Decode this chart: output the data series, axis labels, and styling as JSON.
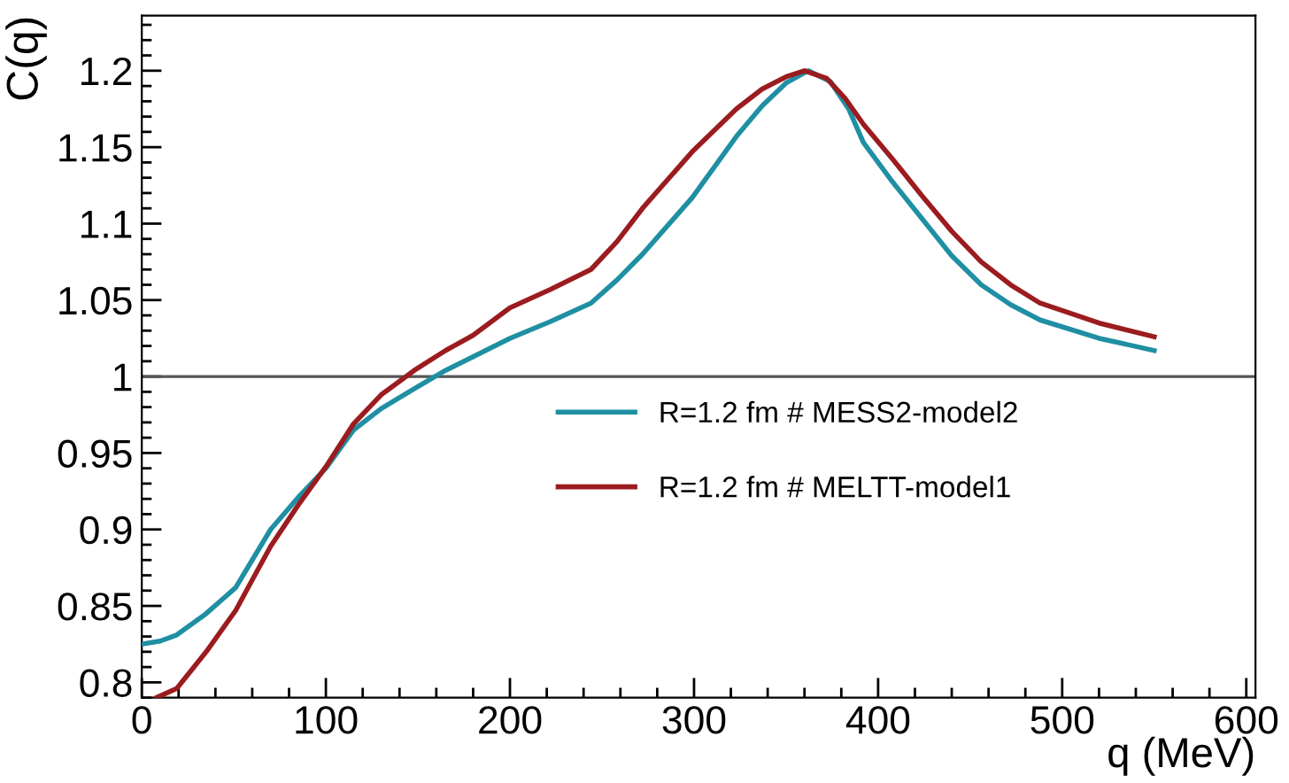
{
  "chart_data": {
    "type": "line",
    "xlabel": "q (MeV)",
    "ylabel": "C(q)",
    "xlim": [
      0,
      605
    ],
    "xticks": [
      0,
      100,
      200,
      300,
      400,
      500,
      600
    ],
    "ylim": [
      0.79,
      1.236
    ],
    "yticks": [
      0.8,
      0.85,
      0.9,
      0.95,
      1,
      1.05,
      1.1,
      1.15,
      1.2
    ],
    "grid": false,
    "legend": "right",
    "marker": "none",
    "line_style": "solid",
    "ref_lines": [
      {
        "axis": "y",
        "value": 1,
        "color": "#555555"
      }
    ],
    "series": [
      {
        "name": "R=1.2 fm # MESS2-model2",
        "color": "#1f8fa3",
        "x": [
          0,
          10,
          19,
          35,
          51,
          60,
          70,
          85,
          100,
          115,
          130,
          148,
          165,
          180,
          200,
          222,
          244,
          258,
          272,
          299,
          323,
          337,
          350,
          362,
          374,
          384,
          392,
          408,
          424,
          440,
          456,
          472,
          488,
          520,
          550
        ],
        "values": [
          0.825,
          0.827,
          0.831,
          0.845,
          0.862,
          0.88,
          0.9,
          0.921,
          0.94,
          0.965,
          0.979,
          0.992,
          1.004,
          1.013,
          1.025,
          1.036,
          1.048,
          1.063,
          1.08,
          1.117,
          1.157,
          1.177,
          1.192,
          1.2,
          1.193,
          1.175,
          1.153,
          1.127,
          1.103,
          1.079,
          1.06,
          1.047,
          1.037,
          1.025,
          1.017
        ]
      },
      {
        "name": "R=1.2 fm # MELTT-model1",
        "color": "#9b1c1f",
        "x": [
          8,
          19,
          35,
          51,
          60,
          70,
          85,
          100,
          115,
          130,
          148,
          165,
          180,
          200,
          222,
          244,
          258,
          272,
          299,
          323,
          337,
          350,
          360,
          372,
          382,
          392,
          408,
          424,
          440,
          456,
          472,
          488,
          520,
          550
        ],
        "values": [
          0.79,
          0.796,
          0.82,
          0.847,
          0.867,
          0.889,
          0.916,
          0.941,
          0.969,
          0.988,
          1.004,
          1.017,
          1.027,
          1.045,
          1.057,
          1.07,
          1.088,
          1.11,
          1.147,
          1.175,
          1.188,
          1.196,
          1.2,
          1.195,
          1.182,
          1.165,
          1.142,
          1.118,
          1.095,
          1.075,
          1.06,
          1.048,
          1.035,
          1.026
        ]
      }
    ]
  }
}
